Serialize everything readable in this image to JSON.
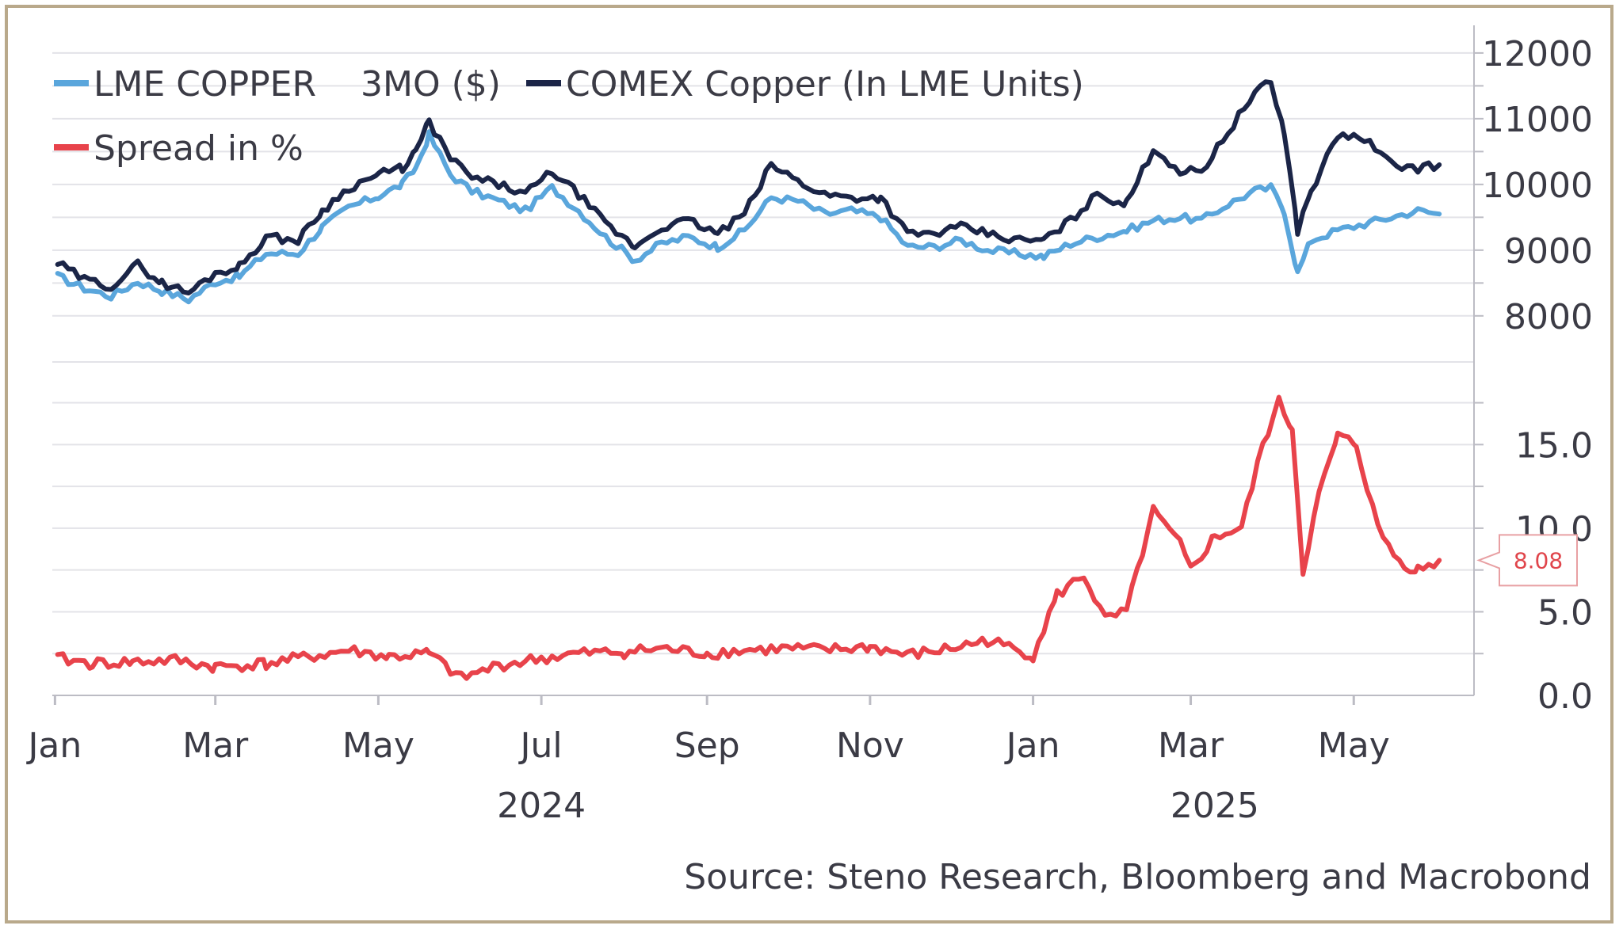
{
  "source": "Source: Steno Research, Bloomberg and Macrobond",
  "colors": {
    "lme": "#5aa6dc",
    "comex": "#1b2547",
    "spread": "#e8434b",
    "grid": "#e3e3e8",
    "axis": "#bcbcc4",
    "text": "#3b3b45"
  },
  "legend": {
    "lme": "LME COPPER    3MO ($)",
    "comex": "COMEX Copper (In LME Units)",
    "spread": "Spread in %"
  },
  "x_axis": {
    "month_ticks": [
      "Jan",
      "Mar",
      "May",
      "Jul",
      "Sep",
      "Nov",
      "Jan",
      "Mar",
      "May"
    ],
    "month_dates": [
      "2024-01-01",
      "2024-03-01",
      "2024-05-01",
      "2024-07-01",
      "2024-09-01",
      "2024-11-01",
      "2025-01-01",
      "2025-03-01",
      "2025-05-01"
    ],
    "year_labels": [
      "2024",
      "2025"
    ],
    "year_centers": [
      "2024-07-01",
      "2025-03-10"
    ],
    "range": [
      "2023-12-31",
      "2025-06-15"
    ]
  },
  "callout": {
    "label": "8.08",
    "value": 8.08
  },
  "chart_data": [
    {
      "type": "line",
      "ylim": [
        7600,
        12300
      ],
      "yticks": [
        8000,
        9000,
        10000,
        11000,
        12000
      ],
      "grid": true,
      "legend_position": "top-left",
      "series": [
        {
          "name": "LME COPPER    3MO ($)",
          "color": "#5aa6dc",
          "points": [
            [
              "2024-01-02",
              8600
            ],
            [
              "2024-01-12",
              8420
            ],
            [
              "2024-01-22",
              8300
            ],
            [
              "2024-02-01",
              8520
            ],
            [
              "2024-02-10",
              8380
            ],
            [
              "2024-02-20",
              8250
            ],
            [
              "2024-03-01",
              8520
            ],
            [
              "2024-03-10",
              8600
            ],
            [
              "2024-03-20",
              8950
            ],
            [
              "2024-04-01",
              8950
            ],
            [
              "2024-04-10",
              9350
            ],
            [
              "2024-04-20",
              9650
            ],
            [
              "2024-05-01",
              9820
            ],
            [
              "2024-05-10",
              10000
            ],
            [
              "2024-05-15",
              10250
            ],
            [
              "2024-05-20",
              10750
            ],
            [
              "2024-05-28",
              10150
            ],
            [
              "2024-06-05",
              9900
            ],
            [
              "2024-06-15",
              9750
            ],
            [
              "2024-06-25",
              9600
            ],
            [
              "2024-07-05",
              9950
            ],
            [
              "2024-07-15",
              9600
            ],
            [
              "2024-07-25",
              9200
            ],
            [
              "2024-08-05",
              8850
            ],
            [
              "2024-08-15",
              9100
            ],
            [
              "2024-08-25",
              9200
            ],
            [
              "2024-09-05",
              9050
            ],
            [
              "2024-09-15",
              9300
            ],
            [
              "2024-09-25",
              9800
            ],
            [
              "2024-10-05",
              9750
            ],
            [
              "2024-10-15",
              9550
            ],
            [
              "2024-10-25",
              9600
            ],
            [
              "2024-11-05",
              9500
            ],
            [
              "2024-11-15",
              9050
            ],
            [
              "2024-11-25",
              9050
            ],
            [
              "2024-12-05",
              9150
            ],
            [
              "2024-12-15",
              9000
            ],
            [
              "2024-12-25",
              8950
            ],
            [
              "2025-01-05",
              8900
            ],
            [
              "2025-01-15",
              9100
            ],
            [
              "2025-01-25",
              9200
            ],
            [
              "2025-02-05",
              9300
            ],
            [
              "2025-02-15",
              9450
            ],
            [
              "2025-02-25",
              9500
            ],
            [
              "2025-03-05",
              9450
            ],
            [
              "2025-03-15",
              9700
            ],
            [
              "2025-03-25",
              9900
            ],
            [
              "2025-03-31",
              9950
            ],
            [
              "2025-04-05",
              9600
            ],
            [
              "2025-04-10",
              8650
            ],
            [
              "2025-04-15",
              9150
            ],
            [
              "2025-04-25",
              9300
            ],
            [
              "2025-05-05",
              9400
            ],
            [
              "2025-05-15",
              9500
            ],
            [
              "2025-05-25",
              9600
            ],
            [
              "2025-06-02",
              9550
            ]
          ]
        },
        {
          "name": "COMEX Copper (In LME Units)",
          "color": "#1b2547",
          "points": [
            [
              "2024-01-02",
              8800
            ],
            [
              "2024-01-12",
              8550
            ],
            [
              "2024-01-22",
              8450
            ],
            [
              "2024-02-01",
              8780
            ],
            [
              "2024-02-10",
              8500
            ],
            [
              "2024-02-20",
              8350
            ],
            [
              "2024-03-01",
              8650
            ],
            [
              "2024-03-10",
              8750
            ],
            [
              "2024-03-20",
              9200
            ],
            [
              "2024-04-01",
              9150
            ],
            [
              "2024-04-10",
              9600
            ],
            [
              "2024-04-20",
              9950
            ],
            [
              "2024-05-01",
              10150
            ],
            [
              "2024-05-10",
              10250
            ],
            [
              "2024-05-15",
              10500
            ],
            [
              "2024-05-20",
              10950
            ],
            [
              "2024-05-28",
              10400
            ],
            [
              "2024-06-05",
              10100
            ],
            [
              "2024-06-15",
              10000
            ],
            [
              "2024-06-25",
              9850
            ],
            [
              "2024-07-05",
              10200
            ],
            [
              "2024-07-15",
              9850
            ],
            [
              "2024-07-25",
              9400
            ],
            [
              "2024-08-05",
              9050
            ],
            [
              "2024-08-15",
              9350
            ],
            [
              "2024-08-25",
              9450
            ],
            [
              "2024-09-05",
              9250
            ],
            [
              "2024-09-15",
              9550
            ],
            [
              "2024-09-25",
              10300
            ],
            [
              "2024-10-05",
              10050
            ],
            [
              "2024-10-15",
              9850
            ],
            [
              "2024-10-25",
              9800
            ],
            [
              "2024-11-05",
              9800
            ],
            [
              "2024-11-15",
              9250
            ],
            [
              "2024-11-25",
              9250
            ],
            [
              "2024-12-05",
              9350
            ],
            [
              "2024-12-15",
              9250
            ],
            [
              "2024-12-25",
              9150
            ],
            [
              "2025-01-05",
              9150
            ],
            [
              "2025-01-15",
              9450
            ],
            [
              "2025-01-25",
              9850
            ],
            [
              "2025-02-05",
              9700
            ],
            [
              "2025-02-15",
              10550
            ],
            [
              "2025-02-25",
              10200
            ],
            [
              "2025-03-05",
              10200
            ],
            [
              "2025-03-15",
              10800
            ],
            [
              "2025-03-25",
              11400
            ],
            [
              "2025-03-31",
              11550
            ],
            [
              "2025-04-05",
              10800
            ],
            [
              "2025-04-10",
              9300
            ],
            [
              "2025-04-15",
              9900
            ],
            [
              "2025-04-25",
              10750
            ],
            [
              "2025-05-05",
              10700
            ],
            [
              "2025-05-15",
              10300
            ],
            [
              "2025-05-25",
              10250
            ],
            [
              "2025-06-02",
              10300
            ]
          ]
        }
      ]
    },
    {
      "type": "line",
      "ylim": [
        0,
        18
      ],
      "yticks": [
        0,
        5,
        10,
        15
      ],
      "ytick_labels": [
        "0.0",
        "5.0",
        "10.0",
        "15.0"
      ],
      "grid": true,
      "series": [
        {
          "name": "Spread in %",
          "color": "#e8434b",
          "points": [
            [
              "2024-01-02",
              2.2
            ],
            [
              "2024-01-15",
              1.9
            ],
            [
              "2024-01-30",
              2.0
            ],
            [
              "2024-02-15",
              2.1
            ],
            [
              "2024-03-01",
              1.7
            ],
            [
              "2024-03-20",
              1.9
            ],
            [
              "2024-04-05",
              2.3
            ],
            [
              "2024-04-20",
              2.7
            ],
            [
              "2024-05-05",
              2.3
            ],
            [
              "2024-05-20",
              2.5
            ],
            [
              "2024-06-01",
              1.0
            ],
            [
              "2024-06-15",
              1.8
            ],
            [
              "2024-07-01",
              2.2
            ],
            [
              "2024-07-15",
              2.5
            ],
            [
              "2024-08-01",
              2.6
            ],
            [
              "2024-08-15",
              2.8
            ],
            [
              "2024-09-01",
              2.5
            ],
            [
              "2024-09-15",
              2.7
            ],
            [
              "2024-10-01",
              2.8
            ],
            [
              "2024-10-15",
              2.7
            ],
            [
              "2024-11-01",
              2.9
            ],
            [
              "2024-11-15",
              2.4
            ],
            [
              "2024-12-01",
              2.8
            ],
            [
              "2024-12-15",
              3.3
            ],
            [
              "2025-01-01",
              2.4
            ],
            [
              "2025-01-10",
              6.0
            ],
            [
              "2025-01-20",
              7.2
            ],
            [
              "2025-01-28",
              4.5
            ],
            [
              "2025-02-05",
              5.0
            ],
            [
              "2025-02-15",
              11.0
            ],
            [
              "2025-02-25",
              9.0
            ],
            [
              "2025-03-01",
              7.5
            ],
            [
              "2025-03-10",
              9.5
            ],
            [
              "2025-03-20",
              10.0
            ],
            [
              "2025-03-28",
              15.0
            ],
            [
              "2025-04-03",
              17.5
            ],
            [
              "2025-04-08",
              16.0
            ],
            [
              "2025-04-12",
              7.5
            ],
            [
              "2025-04-18",
              12.0
            ],
            [
              "2025-04-25",
              15.5
            ],
            [
              "2025-05-02",
              15.0
            ],
            [
              "2025-05-10",
              10.0
            ],
            [
              "2025-05-18",
              8.0
            ],
            [
              "2025-05-25",
              7.5
            ],
            [
              "2025-06-02",
              8.08
            ]
          ]
        }
      ]
    }
  ]
}
